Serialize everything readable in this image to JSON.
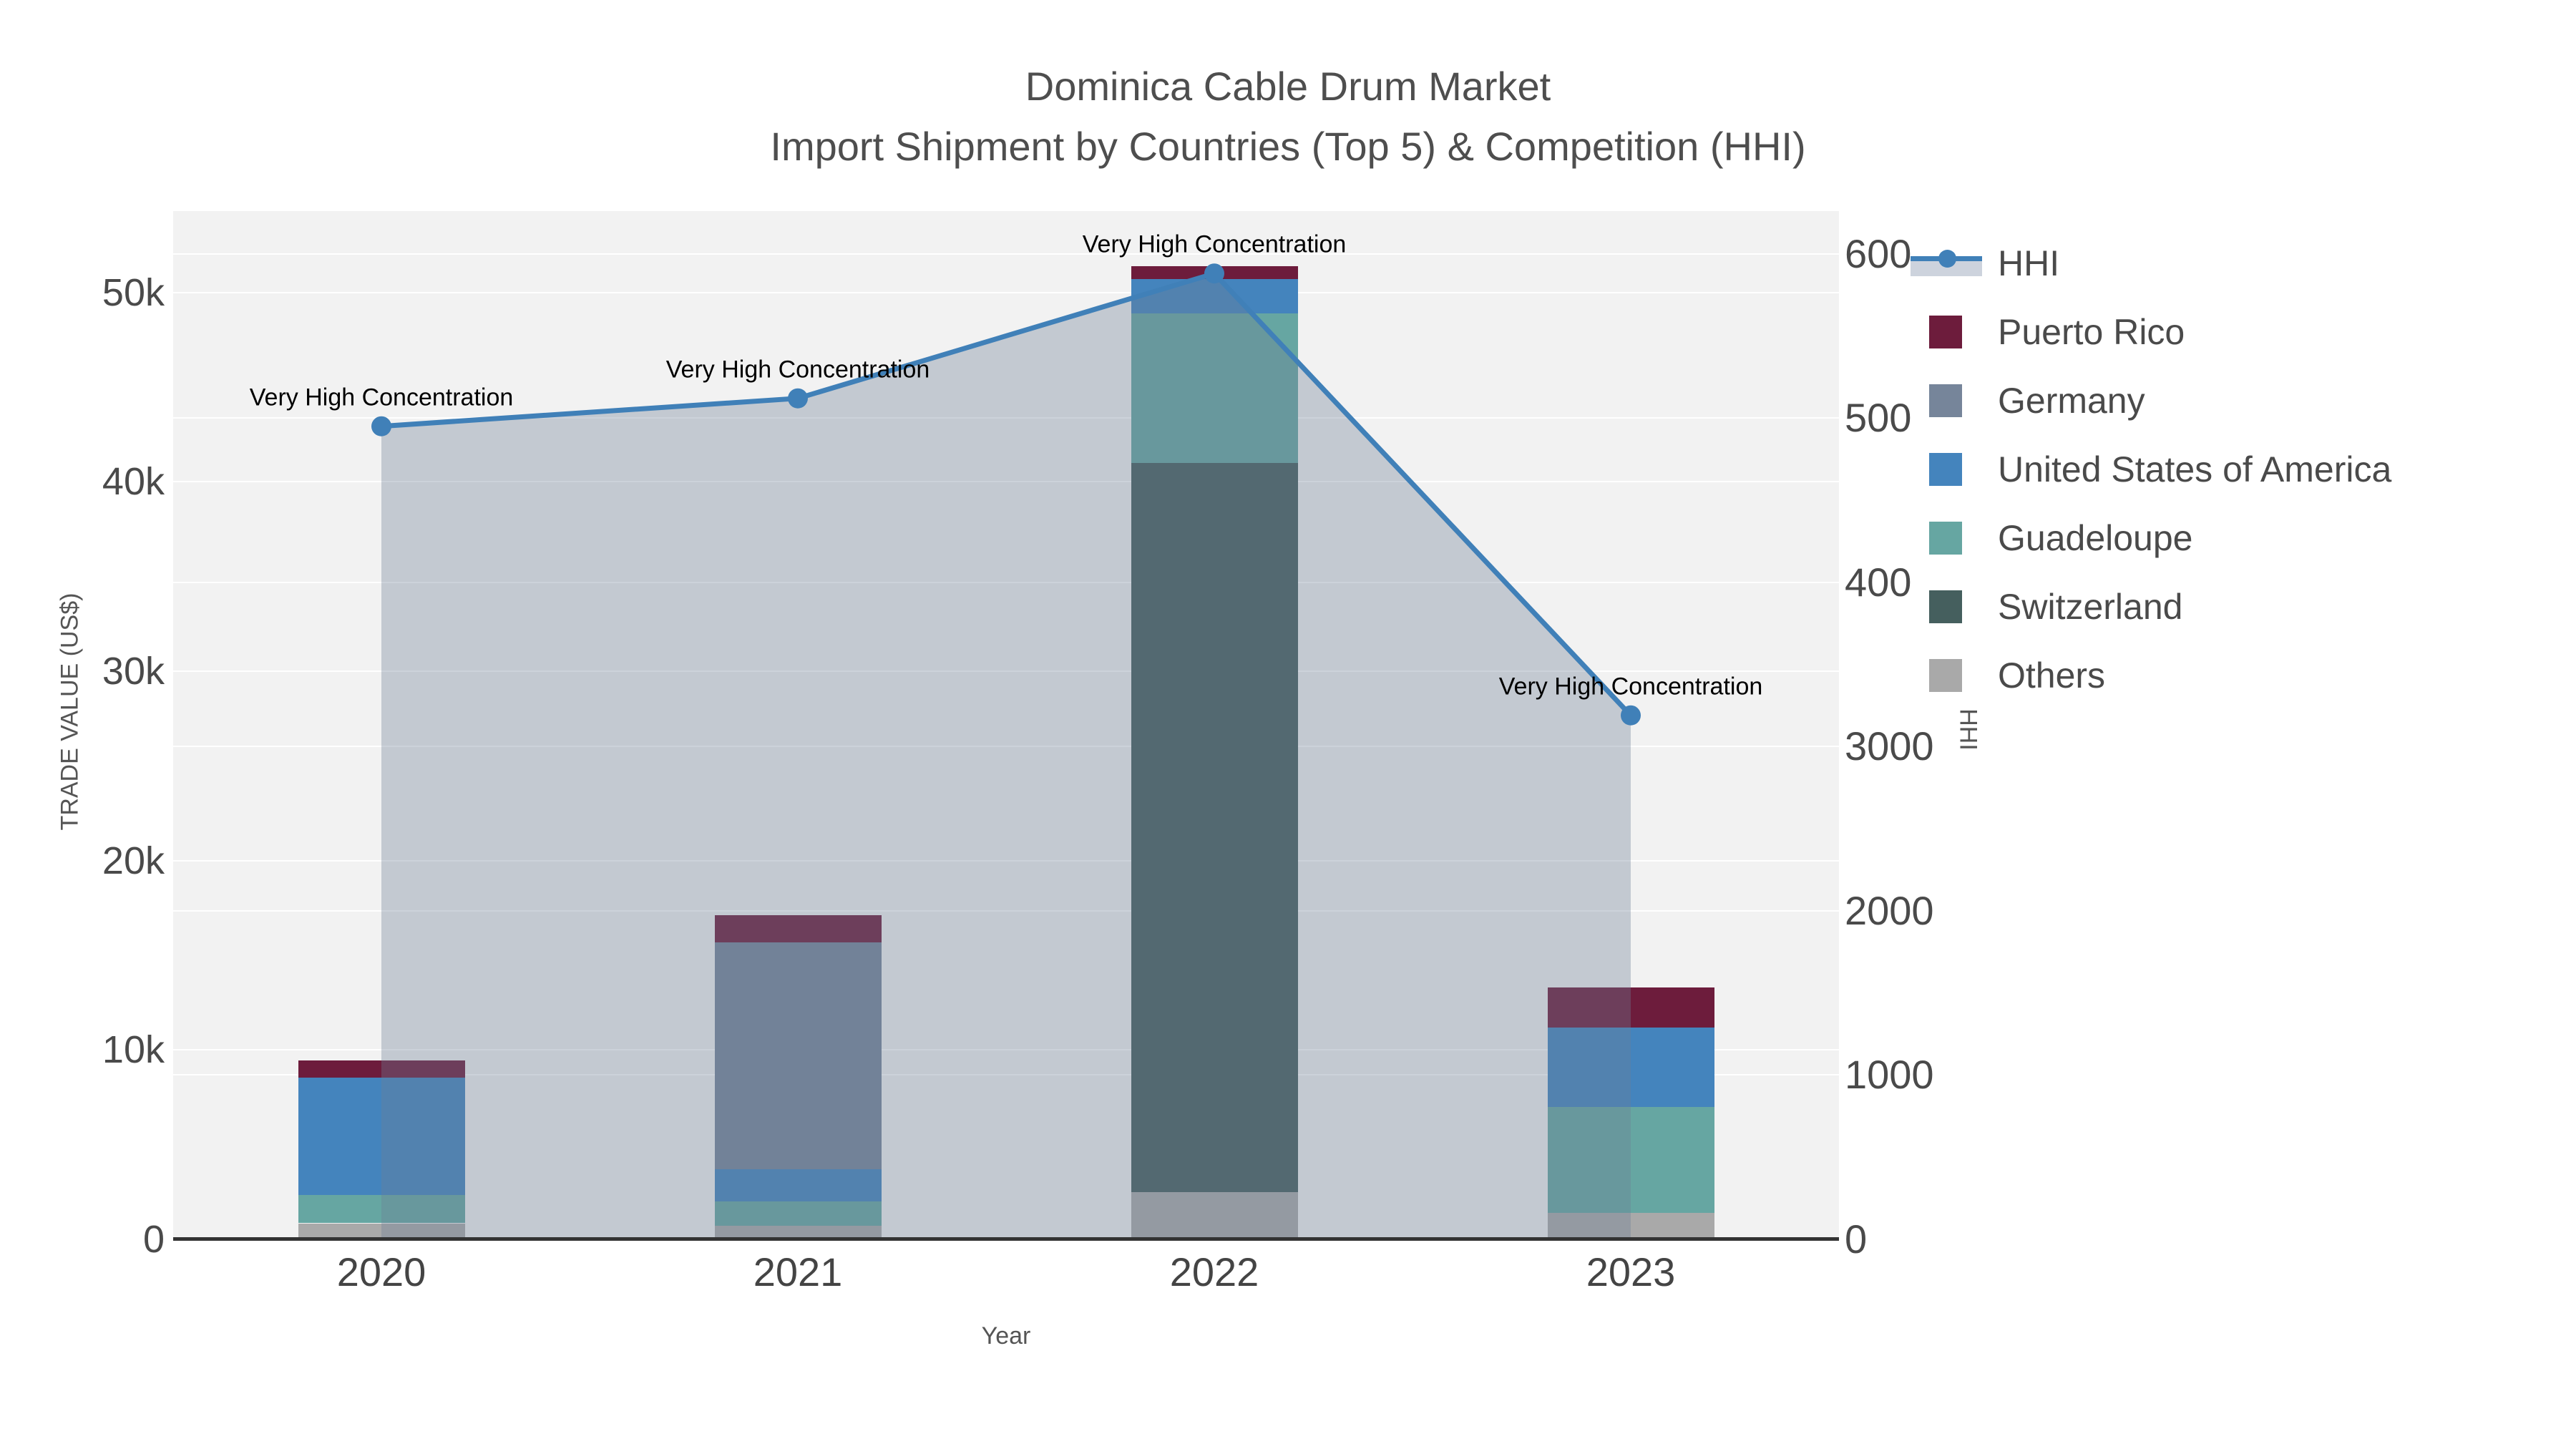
{
  "title": "Dominica Cable Drum Market",
  "subtitle": "Import Shipment by Countries (Top 5) & Competition (HHI)",
  "axes": {
    "x": {
      "title": "Year",
      "categories": [
        "2020",
        "2021",
        "2022",
        "2023"
      ]
    },
    "y_left": {
      "title": "TRADE VALUE (US$)",
      "ticks": [
        {
          "value": 0,
          "label": "0"
        },
        {
          "value": 10000,
          "label": "10k"
        },
        {
          "value": 20000,
          "label": "20k"
        },
        {
          "value": 30000,
          "label": "30k"
        },
        {
          "value": 40000,
          "label": "40k"
        },
        {
          "value": 50000,
          "label": "50k"
        }
      ],
      "max": 54300
    },
    "y_right": {
      "title": "HHI",
      "ticks": [
        {
          "value": 0,
          "label": "0"
        },
        {
          "value": 1000,
          "label": "1000"
        },
        {
          "value": 2000,
          "label": "2000"
        },
        {
          "value": 3000,
          "label": "3000"
        },
        {
          "value": 4000,
          "label": "4000"
        },
        {
          "value": 5000,
          "label": "5000"
        },
        {
          "value": 6000,
          "label": "6000"
        }
      ],
      "max": 6260
    }
  },
  "legend": [
    {
      "label": "HHI",
      "type": "line",
      "color": "#4080b8"
    },
    {
      "label": "Puerto Rico",
      "type": "swatch",
      "color": "#6d1c3c"
    },
    {
      "label": "Germany",
      "type": "swatch",
      "color": "#76859a"
    },
    {
      "label": "United States of America",
      "type": "swatch",
      "color": "#4484bd"
    },
    {
      "label": "Guadeloupe",
      "type": "swatch",
      "color": "#66a6a2"
    },
    {
      "label": "Switzerland",
      "type": "swatch",
      "color": "#455f5e"
    },
    {
      "label": "Others",
      "type": "swatch",
      "color": "#a9a9a9"
    }
  ],
  "chart_data": {
    "type": "bar+line",
    "categories": [
      "2020",
      "2021",
      "2022",
      "2023"
    ],
    "bar_stack_order_bottom_to_top": [
      "Others",
      "Switzerland",
      "Guadeloupe",
      "United States of America",
      "Germany",
      "Puerto Rico"
    ],
    "bar_series": [
      {
        "name": "Others",
        "color": "#a9a9a9",
        "values": [
          850,
          700,
          2500,
          1400
        ]
      },
      {
        "name": "Switzerland",
        "color": "#455f5e",
        "values": [
          0,
          0,
          38500,
          0
        ]
      },
      {
        "name": "Guadeloupe",
        "color": "#66a6a2",
        "values": [
          1500,
          1300,
          7900,
          5600
        ]
      },
      {
        "name": "United States of America",
        "color": "#4484bd",
        "values": [
          6200,
          1700,
          1800,
          4200
        ]
      },
      {
        "name": "Germany",
        "color": "#76859a",
        "values": [
          0,
          12000,
          0,
          0
        ]
      },
      {
        "name": "Puerto Rico",
        "color": "#6d1c3c",
        "values": [
          900,
          1400,
          700,
          2100
        ]
      }
    ],
    "bar_totals": [
      9450,
      17100,
      51400,
      13300
    ],
    "line_series": {
      "name": "HHI",
      "color": "#4080b8",
      "fill_color": "rgba(110,125,150,0.35)",
      "values": [
        4950,
        5120,
        5880,
        3190
      ]
    },
    "annotations": [
      {
        "x": "2020",
        "text": "Very High Concentration"
      },
      {
        "x": "2021",
        "text": "Very High Concentration"
      },
      {
        "x": "2022",
        "text": "Very High Concentration"
      },
      {
        "x": "2023",
        "text": "Very High Concentration"
      }
    ],
    "xlabel": "Year",
    "ylabel_left": "TRADE VALUE (US$)",
    "ylabel_right": "HHI",
    "ylim_left": [
      0,
      54300
    ],
    "ylim_right": [
      0,
      6260
    ],
    "grid": true,
    "legend_position": "right"
  }
}
